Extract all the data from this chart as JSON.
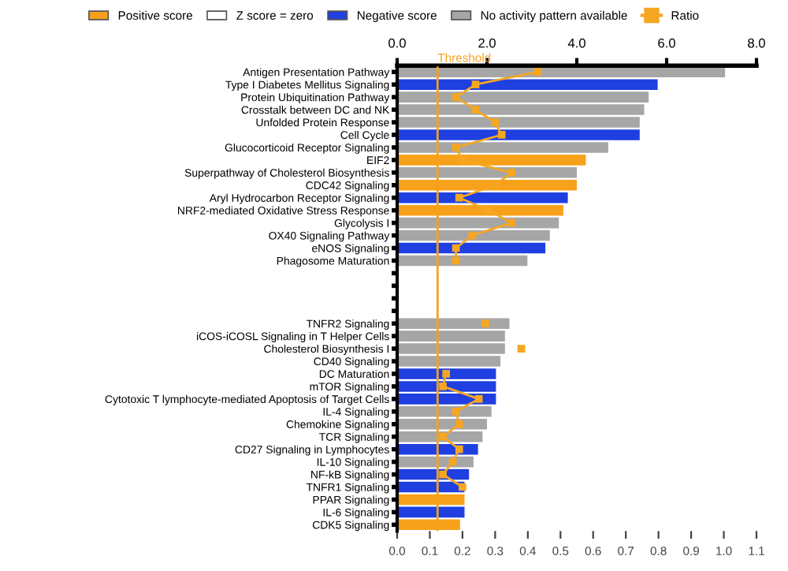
{
  "chart_data": {
    "type": "bar",
    "orientation": "horizontal",
    "categories": [
      "Antigen Presentation Pathway",
      "Type I Diabetes Mellitus Signaling",
      "Protein Ubiquitination Pathway",
      "Crosstalk between DC and NK",
      "Unfolded Protein Response",
      "Cell Cycle",
      "Glucocorticoid Receptor Signaling",
      "EIF2",
      "Superpathway of Cholesterol Biosynthesis",
      "CDC42 Signaling",
      "Aryl Hydrocarbon Receptor Signaling",
      "NRF2-mediated Oxidative Stress Response",
      "Glycolysis I",
      "OX40 Signaling Pathway",
      "eNOS Signaling",
      "Phagosome Maturation",
      null,
      null,
      null,
      null,
      "TNFR2 Signaling",
      "iCOS-iCOSL Signaling in T Helper Cells",
      "Cholesterol Biosynthesis I",
      "CD40 Signaling",
      "DC Maturation",
      "mTOR Signaling",
      "Cytotoxic T lymphocyte-mediated Apoptosis of Target Cells",
      "IL-4 Signaling",
      "Chemokine Signaling",
      "TCR Signaling",
      "CD27 Signaling in Lymphocytes",
      "IL-10 Signaling",
      "NF-kB Signaling",
      "TNFR1 Signaling",
      "PPAR Signaling",
      "IL-6 Signaling",
      "CDK5 Signaling"
    ],
    "series": [
      {
        "name": "Positive score",
        "color": "#f7a11a",
        "axis": "x2",
        "values": [
          null,
          null,
          null,
          null,
          null,
          null,
          null,
          4.2,
          null,
          4.0,
          null,
          3.7,
          null,
          null,
          null,
          null,
          null,
          null,
          null,
          null,
          null,
          null,
          null,
          null,
          null,
          null,
          null,
          null,
          null,
          null,
          null,
          null,
          null,
          null,
          1.5,
          null,
          1.4
        ]
      },
      {
        "name": "Z score = zero",
        "color": "#ffffff",
        "axis": "x2",
        "values": [
          null,
          null,
          null,
          null,
          null,
          null,
          null,
          null,
          null,
          null,
          null,
          null,
          null,
          null,
          null,
          null,
          null,
          null,
          null,
          null,
          null,
          null,
          null,
          null,
          null,
          null,
          null,
          null,
          null,
          null,
          null,
          null,
          null,
          null,
          null,
          null,
          null
        ]
      },
      {
        "name": "Negative score",
        "color": "#1f3fe0",
        "axis": "x2",
        "values": [
          null,
          5.8,
          null,
          null,
          null,
          5.4,
          null,
          null,
          null,
          null,
          3.8,
          null,
          null,
          null,
          3.3,
          null,
          null,
          null,
          null,
          null,
          null,
          null,
          null,
          null,
          2.2,
          2.2,
          2.2,
          null,
          null,
          null,
          1.8,
          null,
          1.6,
          1.5,
          null,
          1.5,
          null
        ]
      },
      {
        "name": "No activity pattern available",
        "color": "#a6a6a6",
        "axis": "x2",
        "values": [
          7.3,
          null,
          5.6,
          5.5,
          5.4,
          null,
          4.7,
          null,
          4.0,
          null,
          null,
          null,
          3.6,
          3.4,
          null,
          2.9,
          null,
          null,
          null,
          null,
          2.5,
          2.4,
          2.4,
          2.3,
          null,
          null,
          null,
          2.1,
          2.0,
          1.9,
          null,
          1.7,
          null,
          null,
          null,
          null,
          null
        ]
      },
      {
        "name": "Ratio",
        "type": "line",
        "color": "#f5a623",
        "marker": "square",
        "values": [
          0.43,
          0.24,
          0.18,
          0.24,
          0.3,
          0.32,
          0.18,
          0.2,
          0.35,
          0.3,
          0.19,
          0.28,
          0.35,
          0.23,
          0.18,
          0.18,
          null,
          null,
          null,
          null,
          0.27,
          null,
          0.38,
          null,
          0.15,
          0.14,
          0.25,
          0.18,
          0.19,
          0.14,
          0.19,
          0.17,
          0.14,
          0.2,
          null,
          null,
          null
        ]
      }
    ],
    "xlim": [
      0,
      1.1
    ],
    "xticks": [
      {
        "value": 0,
        "label": "0.0"
      },
      0.1,
      0.2,
      0.3,
      0.4,
      0.5,
      0.6,
      0.7,
      0.8,
      0.9,
      {
        "value": 1,
        "label": "1.0"
      },
      1.1
    ],
    "x2lim": [
      0,
      8
    ],
    "x2ticks": [
      {
        "value": 0,
        "label": "0.0"
      },
      {
        "value": 2,
        "label": "2.0"
      },
      {
        "value": 4,
        "label": "4.0"
      },
      {
        "value": 6,
        "label": "6.0"
      },
      {
        "value": 8,
        "label": "8.0"
      }
    ],
    "ref_lines": [
      {
        "axis": "x2",
        "value": 0.9,
        "label": "Threshold",
        "color": "#f7a11a"
      }
    ],
    "legend": "top",
    "grid": false
  }
}
